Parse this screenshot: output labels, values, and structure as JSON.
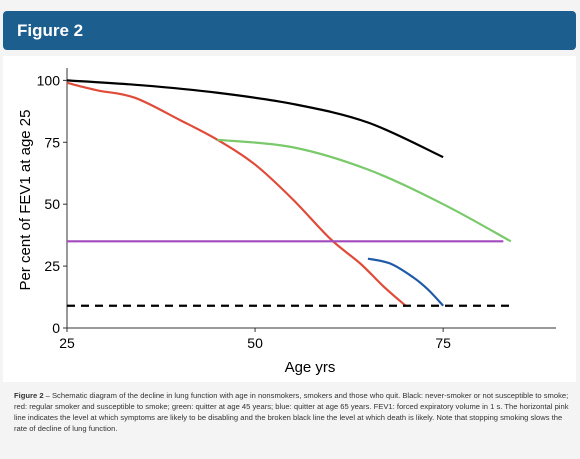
{
  "header": {
    "title": "Figure 2"
  },
  "caption": {
    "label": "Figure 2",
    "text": " – Schematic diagram of the decline in lung function with age in nonsmokers, smokers and those who quit. Black: never-smoker or not susceptible to smoke; red: regular smoker and susceptible to smoke; green: quitter at age 45 years; blue: quitter at age 65 years. FEV1: forced expiratory volume in 1 s. The horizontal pink line indicates the level at which symptoms are likely to be disabling and the broken black line the level at which death is likely. Note that stopping smoking slows the rate of decline of lung function."
  },
  "colors": {
    "header_bg": "#1c5f8f",
    "never_smoker": "#000000",
    "smoker": "#e04b3a",
    "quit_45": "#7ac96a",
    "quit_65": "#1f5aa6",
    "disability": "#a24bbd",
    "death": "#000000"
  },
  "chart_data": {
    "type": "line",
    "title": "",
    "xlabel": "Age yrs",
    "ylabel": "Per cent of FEV1 at age 25",
    "xlim": [
      25,
      90
    ],
    "ylim": [
      0,
      105
    ],
    "xticks": [
      "25",
      "50",
      "75"
    ],
    "yticks": [
      "0",
      "25",
      "50",
      "75",
      "100"
    ],
    "grid": false,
    "legend": "none",
    "series": [
      {
        "color": "#000000",
        "style": "solid",
        "x": [
          25,
          35,
          45,
          55,
          65,
          75
        ],
        "y": [
          100,
          98,
          95,
          90.5,
          83,
          69
        ]
      },
      {
        "color": "#e04b3a",
        "style": "solid",
        "x": [
          25,
          29,
          34,
          40,
          45,
          50,
          55,
          60,
          64,
          67,
          70
        ],
        "y": [
          99,
          96,
          93,
          84,
          76,
          66,
          52,
          36,
          26,
          17,
          9
        ]
      },
      {
        "color": "#7ac96a",
        "style": "solid",
        "x": [
          45,
          55,
          65,
          75,
          84
        ],
        "y": [
          76,
          73,
          64,
          50,
          35
        ]
      },
      {
        "color": "#1f5aa6",
        "style": "solid",
        "x": [
          65,
          68,
          71,
          73,
          75
        ],
        "y": [
          28,
          26,
          20.5,
          15.5,
          9
        ]
      },
      {
        "color": "#a24bbd",
        "style": "solid",
        "x": [
          25,
          83
        ],
        "y": [
          35,
          35
        ]
      },
      {
        "color": "#000000",
        "style": "dashed",
        "x": [
          25,
          84
        ],
        "y": [
          9,
          9
        ]
      }
    ]
  }
}
